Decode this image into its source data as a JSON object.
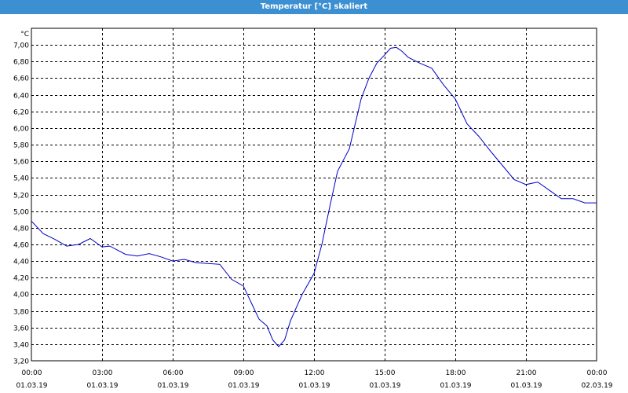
{
  "window": {
    "title": "Temperatur [°C] skaliert"
  },
  "colors": {
    "titlebar": "#3c8fd0",
    "line": "#0000c8",
    "grid": "#000000",
    "background": "#ffffff"
  },
  "chart_data": {
    "type": "line",
    "title": "Temperatur [°C] skaliert",
    "ylabel": "°C",
    "xlabel": "",
    "ylim": [
      3.2,
      7.2
    ],
    "xlim": [
      "01.03.19 00:00",
      "02.03.19 00:00"
    ],
    "grid": true,
    "yticks": [
      "3,20",
      "3,40",
      "3,60",
      "3,80",
      "4,00",
      "4,20",
      "4,40",
      "4,60",
      "4,80",
      "5,00",
      "5,20",
      "5,40",
      "5,60",
      "5,80",
      "6,00",
      "6,20",
      "6,40",
      "6,60",
      "6,80",
      "7,00"
    ],
    "xticks": [
      {
        "time": "00:00",
        "date": "01.03.19"
      },
      {
        "time": "03:00",
        "date": "01.03.19"
      },
      {
        "time": "06:00",
        "date": "01.03.19"
      },
      {
        "time": "09:00",
        "date": "01.03.19"
      },
      {
        "time": "12:00",
        "date": "01.03.19"
      },
      {
        "time": "15:00",
        "date": "01.03.19"
      },
      {
        "time": "18:00",
        "date": "01.03.19"
      },
      {
        "time": "21:00",
        "date": "01.03.19"
      },
      {
        "time": "00:00",
        "date": "02.03.19"
      }
    ],
    "series": [
      {
        "x": [
          "00:00",
          "00:30",
          "01:00",
          "01:30",
          "02:00",
          "02:30",
          "03:00",
          "03:20",
          "03:40",
          "04:00",
          "04:30",
          "05:00",
          "05:30",
          "06:00",
          "06:30",
          "07:00",
          "07:30",
          "08:00",
          "08:30",
          "09:00",
          "09:20",
          "09:40",
          "10:00",
          "10:15",
          "10:30",
          "10:45",
          "11:00",
          "11:30",
          "12:00",
          "12:20",
          "12:40",
          "13:00",
          "13:30",
          "14:00",
          "14:20",
          "14:40",
          "15:00",
          "15:15",
          "15:30",
          "15:45",
          "16:00",
          "16:30",
          "17:00",
          "17:30",
          "18:00",
          "18:30",
          "19:00",
          "19:30",
          "20:00",
          "20:30",
          "21:00",
          "21:30",
          "22:00",
          "22:30",
          "23:00",
          "23:30",
          "24:00"
        ],
        "values": [
          4.88,
          4.73,
          4.66,
          4.58,
          4.6,
          4.67,
          4.57,
          4.58,
          4.53,
          4.48,
          4.46,
          4.49,
          4.45,
          4.4,
          4.42,
          4.38,
          4.37,
          4.36,
          4.18,
          4.1,
          3.9,
          3.7,
          3.62,
          3.45,
          3.37,
          3.45,
          3.68,
          4.0,
          4.25,
          4.6,
          5.05,
          5.48,
          5.75,
          6.35,
          6.6,
          6.78,
          6.88,
          6.96,
          6.97,
          6.92,
          6.85,
          6.78,
          6.72,
          6.52,
          6.35,
          6.05,
          5.9,
          5.72,
          5.55,
          5.38,
          5.32,
          5.35,
          5.25,
          5.15,
          5.15,
          5.1,
          5.1
        ]
      }
    ]
  }
}
